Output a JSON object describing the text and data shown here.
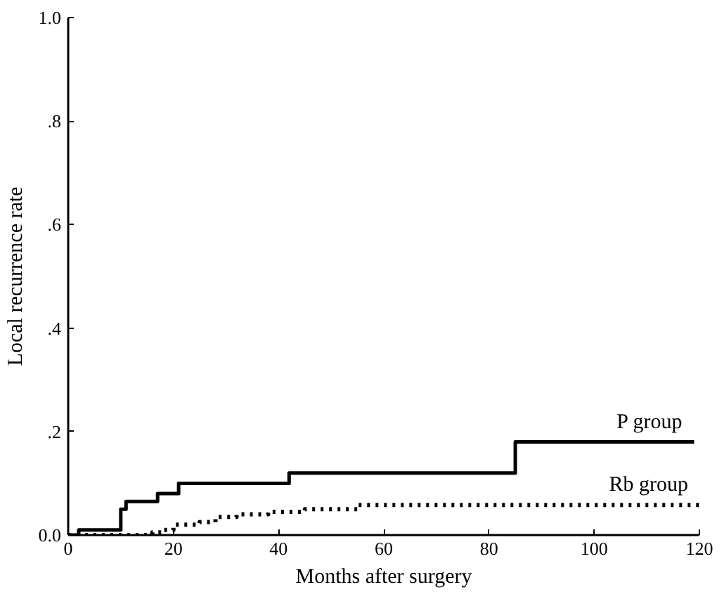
{
  "chart_data": {
    "type": "step",
    "xlabel": "Months after surgery",
    "ylabel": "Local recurrence rate",
    "xlim": [
      0,
      120
    ],
    "ylim": [
      0,
      1.0
    ],
    "xticks": [
      0,
      20,
      40,
      60,
      80,
      100,
      120
    ],
    "yticks": [
      {
        "value": 0,
        "label": "0.0"
      },
      {
        "value": 0.2,
        "label": ".2"
      },
      {
        "value": 0.4,
        "label": ".4"
      },
      {
        "value": 0.6,
        "label": ".6"
      },
      {
        "value": 0.8,
        "label": ".8"
      },
      {
        "value": 1.0,
        "label": "1.0"
      }
    ],
    "grid": false,
    "series": [
      {
        "name": "P group",
        "color": "#000000",
        "line_style": "solid",
        "x": [
          0,
          2,
          10,
          11,
          17,
          21,
          42,
          85,
          119
        ],
        "values": [
          0,
          0.01,
          0.05,
          0.065,
          0.08,
          0.1,
          0.12,
          0.18,
          0.18
        ]
      },
      {
        "name": "Rb group",
        "color": "#000000",
        "line_style": "dotted",
        "x": [
          0,
          16,
          18,
          20,
          25,
          28,
          32,
          38,
          45,
          55,
          120
        ],
        "values": [
          0,
          0.005,
          0.01,
          0.02,
          0.025,
          0.035,
          0.04,
          0.045,
          0.05,
          0.058,
          0.058
        ]
      }
    ]
  }
}
